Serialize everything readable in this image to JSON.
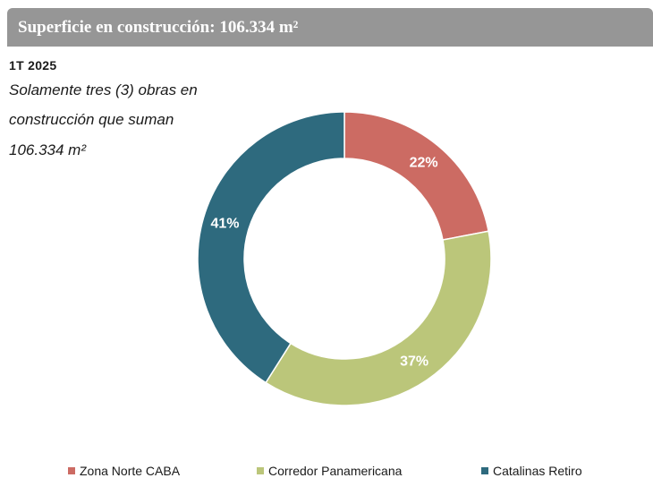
{
  "header": {
    "title": "Superficie en construcción: 106.334 m²"
  },
  "period": "1T 2025",
  "note": {
    "line1": "Solamente tres (3) obras en",
    "line2": "construcción que suman",
    "line3": "106.334 m²"
  },
  "colors": {
    "header_bg": "#969696",
    "zona_norte": "#cc6b63",
    "corredor": "#bbc67a",
    "catalinas": "#2e6a7e",
    "data_label": "#ffffff"
  },
  "chart_data": {
    "type": "pie",
    "variant": "donut",
    "title": "",
    "series": [
      {
        "name": "Superficie en construcción",
        "categories": [
          "Zona Norte CABA",
          "Corredor Panamericana",
          "Catalinas Retiro"
        ],
        "values": [
          22,
          37,
          41
        ],
        "labels": [
          "22%",
          "37%",
          "41%"
        ]
      }
    ],
    "legend_position": "bottom"
  },
  "legend": {
    "items": [
      {
        "label": "Zona Norte CABA"
      },
      {
        "label": "Corredor Panamericana"
      },
      {
        "label": "Catalinas Retiro"
      }
    ]
  }
}
